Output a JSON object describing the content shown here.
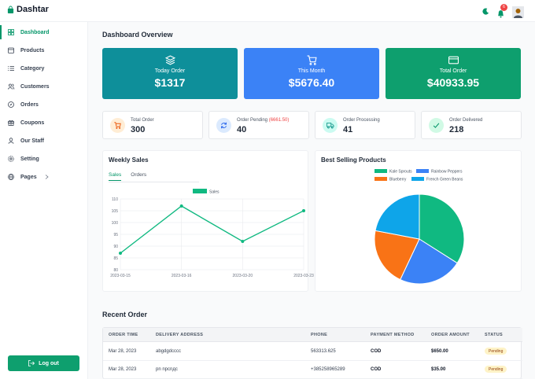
{
  "app": {
    "name": "Dashtar"
  },
  "header": {
    "notification_count": "6"
  },
  "sidebar": {
    "items": [
      {
        "label": "Dashboard",
        "icon": "grid-icon",
        "active": true
      },
      {
        "label": "Products",
        "icon": "box-icon"
      },
      {
        "label": "Category",
        "icon": "list-icon"
      },
      {
        "label": "Customers",
        "icon": "users-icon"
      },
      {
        "label": "Orders",
        "icon": "compass-icon"
      },
      {
        "label": "Coupons",
        "icon": "gift-icon"
      },
      {
        "label": "Our Staff",
        "icon": "user-icon"
      },
      {
        "label": "Setting",
        "icon": "settings-icon"
      },
      {
        "label": "Pages",
        "icon": "globe-icon"
      }
    ],
    "logout_label": "Log out"
  },
  "overview": {
    "title": "Dashboard Overview",
    "cards": [
      {
        "label": "Today Order",
        "value": "$1317",
        "color": "#0e8f9a",
        "icon": "stack-icon"
      },
      {
        "label": "This Month",
        "value": "$5676.40",
        "color": "#3b82f6",
        "icon": "cart-icon"
      },
      {
        "label": "Total Order",
        "value": "$40933.95",
        "color": "#0e9f6e",
        "icon": "credit-card-icon"
      }
    ],
    "mini": [
      {
        "label": "Total Order",
        "value": "300",
        "extra": "",
        "icon": "cart-icon",
        "color": "#ea580c",
        "bg": "#ffedd5"
      },
      {
        "label": "Order Pending",
        "value": "40",
        "extra": "(6661.50)",
        "icon": "refresh-icon",
        "color": "#2563eb",
        "bg": "#dbeafe"
      },
      {
        "label": "Order Processing",
        "value": "41",
        "extra": "",
        "icon": "truck-icon",
        "color": "#0d9488",
        "bg": "#ccfbf1"
      },
      {
        "label": "Order Delivered",
        "value": "218",
        "extra": "",
        "icon": "check-icon",
        "color": "#059669",
        "bg": "#d1fae5"
      }
    ]
  },
  "weekly_sales": {
    "title": "Weekly Sales",
    "tabs": [
      "Sales",
      "Orders"
    ]
  },
  "best_selling": {
    "title": "Best Selling Products"
  },
  "chart_data": [
    {
      "type": "line",
      "title": "Weekly Sales",
      "x": [
        "2023-03-15",
        "2023-03-16",
        "2023-03-20",
        "2023-03-23"
      ],
      "series": [
        {
          "name": "Sales",
          "values": [
            87,
            107,
            92,
            105
          ],
          "color": "#10b981"
        }
      ],
      "ylim": [
        80,
        110
      ],
      "yticks": [
        80,
        85,
        90,
        95,
        100,
        105,
        110
      ],
      "grid": true,
      "legend": "top"
    },
    {
      "type": "pie",
      "title": "Best Selling Products",
      "labels": [
        "Kale Sprouts",
        "Rainbow Peppers",
        "Blueberry",
        "French Green Beans"
      ],
      "values": [
        34,
        23,
        21,
        22
      ],
      "colors": [
        "#10b981",
        "#3b82f6",
        "#f97316",
        "#0ea5e9"
      ],
      "legend": "top"
    }
  ],
  "recent_orders": {
    "title": "Recent Order",
    "columns": [
      "ORDER TIME",
      "DELIVERY ADDRESS",
      "PHONE",
      "PAYMENT METHOD",
      "ORDER AMOUNT",
      "STATUS"
    ],
    "rows": [
      [
        "Mar 28, 2023",
        "abgdgdcccc",
        "563313.625",
        "COD",
        "$650.00",
        "Pending"
      ],
      [
        "Mar 28, 2023",
        "pn npcnдс",
        "+385258965289",
        "COD",
        "$35.00",
        "Pending"
      ]
    ]
  }
}
